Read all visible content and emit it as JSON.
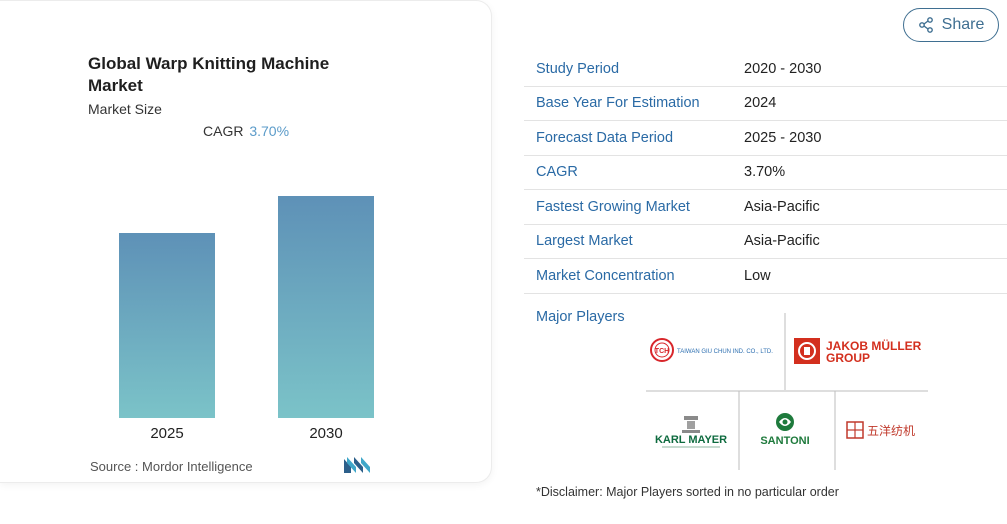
{
  "card": {
    "title": "Global Warp Knitting Machine Market",
    "subtitle": "Market Size",
    "cagr_label": "CAGR",
    "cagr_value": "3.70%",
    "source": "Source :  Mordor Intelligence"
  },
  "chart_data": {
    "type": "bar",
    "categories": [
      "2025",
      "2030"
    ],
    "values": [
      1.0,
      1.2
    ],
    "ylim": [
      0,
      1.2
    ],
    "title": "Global Warp Knitting Machine Market",
    "xlabel": "",
    "ylabel": "",
    "grid": false,
    "colors": {
      "top": "#5e91b7",
      "bottom": "#7bc3c8"
    }
  },
  "share": {
    "label": "Share",
    "icon": "share-icon"
  },
  "info": {
    "rows": [
      {
        "label": "Study Period",
        "value": "2020 - 2030"
      },
      {
        "label": "Base Year For Estimation",
        "value": "2024"
      },
      {
        "label": "Forecast Data Period",
        "value": "2025 - 2030"
      },
      {
        "label": "CAGR",
        "value": "3.70%"
      },
      {
        "label": "Fastest Growing Market",
        "value": "Asia-Pacific"
      },
      {
        "label": "Largest Market",
        "value": "Asia-Pacific"
      },
      {
        "label": "Market Concentration",
        "value": "Low"
      }
    ],
    "players_label": "Major Players"
  },
  "players": {
    "taiwan": {
      "text": "TAIWAN GIU CHUN IND. CO., LTD.",
      "badge": "TCH"
    },
    "jakob": {
      "line1": "JAKOB MÜLLER",
      "line2": "GROUP"
    },
    "karl": {
      "text": "KARL MAYER"
    },
    "santoni": {
      "text": "SANTONI"
    },
    "wuyang": {
      "text": "五洋纺机"
    }
  },
  "disclaimer": "*Disclaimer: Major Players sorted in no particular order",
  "colors": {
    "accent": "#2a6aa5",
    "share": "#3f6f91",
    "jakob_red": "#d32f1e",
    "karl_green": "#0e6b3f",
    "santoni_green": "#1e7a3c",
    "taiwan_red": "#d8262b"
  }
}
